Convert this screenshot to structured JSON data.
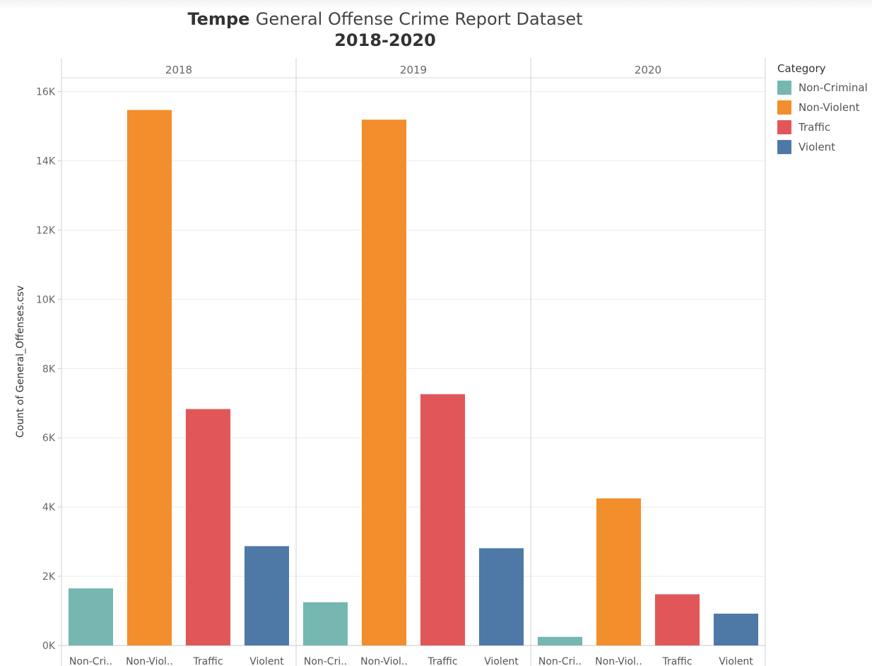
{
  "title": {
    "line1_bold": "Tempe",
    "line1_rest": "General Offense Crime Report Dataset",
    "line2": "2018-2020"
  },
  "chart_data": {
    "type": "bar",
    "ylabel": "Count of General_Offenses.csv",
    "ylim": [
      0,
      16400
    ],
    "yticks": [
      0,
      2000,
      4000,
      6000,
      8000,
      10000,
      12000,
      14000,
      16000
    ],
    "ytick_labels": [
      "0K",
      "2K",
      "4K",
      "6K",
      "8K",
      "10K",
      "12K",
      "14K",
      "16K"
    ],
    "panels": [
      "2018",
      "2019",
      "2020"
    ],
    "categories": [
      "Non-Criminal",
      "Non-Violent",
      "Traffic",
      "Violent"
    ],
    "category_tick_labels": [
      "Non-Cri..",
      "Non-Viol..",
      "Traffic",
      "Violent"
    ],
    "values": {
      "2018": [
        1650,
        15470,
        6830,
        2870
      ],
      "2019": [
        1250,
        15190,
        7260,
        2810
      ],
      "2020": [
        250,
        4250,
        1480,
        920
      ]
    },
    "colors": {
      "Non-Criminal": "#76b7b2",
      "Non-Violent": "#f28e2b",
      "Traffic": "#e15759",
      "Violent": "#4e79a7"
    },
    "grid": true,
    "legend": {
      "title": "Category",
      "position": "right",
      "items": [
        "Non-Criminal",
        "Non-Violent",
        "Traffic",
        "Violent"
      ]
    }
  }
}
